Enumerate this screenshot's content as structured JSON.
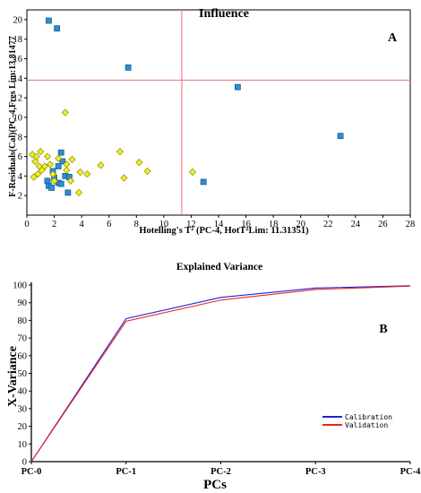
{
  "colors": {
    "limit_line": "#e8707a",
    "blue_marker": "#2b8fd0",
    "blue_marker_edge": "#1a5f8f",
    "yellow_marker": "#f0f020",
    "yellow_marker_edge": "#8a8a10",
    "calibration": "#2222dd",
    "validation": "#ee2222",
    "axis": "#000000"
  },
  "chart_data": [
    {
      "type": "scatter",
      "title": "Influence",
      "panel_label": "A",
      "xlabel": "Hotelling's T² (PC-4, HotT²Lim: 11.31351)",
      "ylabel": "F-Residuals(Cal)(PC-4,Fres Lim:13.81477",
      "xlim": [
        0,
        28
      ],
      "ylim": [
        0,
        21
      ],
      "xticks": [
        0,
        2,
        4,
        6,
        8,
        10,
        12,
        14,
        16,
        18,
        20,
        22,
        24,
        26,
        28
      ],
      "yticks": [
        2,
        4,
        6,
        8,
        10,
        12,
        14,
        16,
        18,
        20
      ],
      "limits": {
        "x": 11.31351,
        "y": 13.81477
      },
      "series": [
        {
          "marker": "square",
          "color": "blue_marker",
          "points": [
            [
              1.6,
              19.9
            ],
            [
              2.2,
              19.1
            ],
            [
              7.4,
              15.1
            ],
            [
              15.4,
              13.1
            ],
            [
              22.9,
              8.1
            ],
            [
              12.9,
              3.4
            ],
            [
              2.5,
              6.4
            ],
            [
              2.6,
              5.5
            ],
            [
              2.3,
              5.0
            ],
            [
              1.9,
              4.5
            ],
            [
              2.0,
              3.8
            ],
            [
              2.8,
              4.0
            ],
            [
              3.1,
              3.9
            ],
            [
              1.5,
              3.5
            ],
            [
              2.3,
              3.3
            ],
            [
              2.5,
              3.2
            ],
            [
              1.6,
              3.0
            ],
            [
              1.8,
              2.8
            ],
            [
              3.0,
              2.3
            ]
          ]
        },
        {
          "marker": "diamond",
          "color": "yellow_marker",
          "points": [
            [
              2.8,
              10.5
            ],
            [
              6.8,
              6.5
            ],
            [
              0.4,
              6.2
            ],
            [
              0.7,
              6.0
            ],
            [
              1.0,
              6.5
            ],
            [
              1.5,
              6.0
            ],
            [
              0.6,
              5.5
            ],
            [
              0.9,
              5.0
            ],
            [
              1.3,
              5.0
            ],
            [
              1.7,
              5.2
            ],
            [
              2.3,
              5.8
            ],
            [
              2.9,
              5.2
            ],
            [
              3.3,
              5.7
            ],
            [
              1.1,
              4.6
            ],
            [
              0.8,
              4.2
            ],
            [
              0.5,
              3.9
            ],
            [
              1.9,
              4.2
            ],
            [
              2.9,
              4.6
            ],
            [
              3.9,
              4.4
            ],
            [
              4.4,
              4.2
            ],
            [
              5.4,
              5.1
            ],
            [
              8.2,
              5.4
            ],
            [
              8.8,
              4.5
            ],
            [
              7.1,
              3.8
            ],
            [
              2.0,
              3.5
            ],
            [
              3.2,
              3.5
            ],
            [
              3.8,
              2.3
            ],
            [
              12.1,
              4.4
            ]
          ]
        }
      ]
    },
    {
      "type": "line",
      "title": "Explained Variance",
      "panel_label": "B",
      "xlabel": "PCs",
      "ylabel": "X-Variance",
      "categories": [
        "PC-0",
        "PC-1",
        "PC-2",
        "PC-3",
        "PC-4"
      ],
      "ylim": [
        0,
        100
      ],
      "yticks": [
        0,
        10,
        20,
        30,
        40,
        50,
        60,
        70,
        80,
        90,
        100
      ],
      "series": [
        {
          "name": "Calibration",
          "color": "calibration",
          "values": [
            0,
            81,
            93,
            98.3,
            99.6
          ]
        },
        {
          "name": "Validation",
          "color": "validation",
          "values": [
            0,
            79.5,
            91.5,
            97.5,
            99.4
          ]
        }
      ]
    }
  ]
}
